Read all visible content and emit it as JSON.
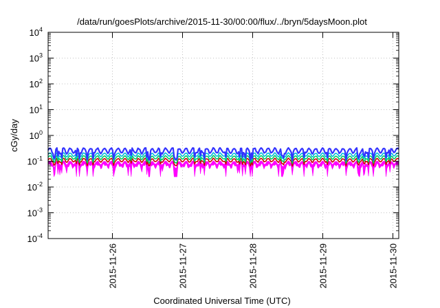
{
  "chart_data": {
    "type": "line",
    "title": "/data/run/goesPlots/archive/2015-11-30/00:00/flux/../bryn/5daysMoon.plot",
    "xlabel": "Coordinated Universal Time (UTC)",
    "ylabel": "cGy/day",
    "y_scale": "log",
    "ylim": [
      0.0001,
      10000
    ],
    "xlim": [
      "2015-11-25 02:00",
      "2015-11-30 02:00"
    ],
    "x_ticks": [
      "2015-11-26",
      "2015-11-27",
      "2015-11-28",
      "2015-11-29",
      "2015-11-30"
    ],
    "y_ticks": [
      {
        "base": "10",
        "exp": "4"
      },
      {
        "base": "10",
        "exp": "3"
      },
      {
        "base": "10",
        "exp": "2"
      },
      {
        "base": "10",
        "exp": "1"
      },
      {
        "base": "10",
        "exp": "0"
      },
      {
        "base": "10",
        "exp": "-1"
      },
      {
        "base": "10",
        "exp": "-2"
      },
      {
        "base": "10",
        "exp": "-3"
      },
      {
        "base": "10",
        "exp": "-4"
      }
    ],
    "grid": true,
    "legend": "none",
    "series": [
      {
        "color": "#ff00ff",
        "level_cgy_per_day": 0.085,
        "dip_min_cgy_per_day": 0.025
      },
      {
        "color": "#cc0000",
        "level_cgy_per_day": 0.11
      },
      {
        "color": "#00cc66",
        "level_cgy_per_day": 0.14
      },
      {
        "color": "#00bbdd",
        "level_cgy_per_day": 0.18
      },
      {
        "color": "#3333ff",
        "level_cgy_per_day": 0.26
      }
    ]
  }
}
